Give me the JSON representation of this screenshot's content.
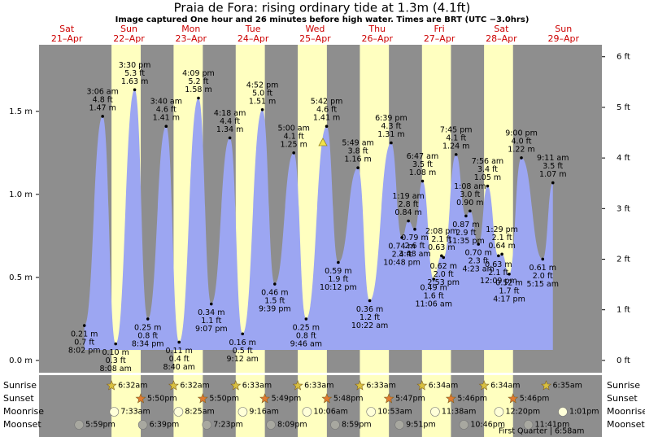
{
  "chart_data": {
    "type": "tide",
    "title": "Praia de Fora: rising  ordinary tide at 1.3m (4.1ft)",
    "subtitle": "Image captured One hour and 26 minutes before high water. Times are BRT (UTC −3.0hrs)",
    "ylim": [
      -0.074,
      1.901
    ],
    "yticks": [
      {
        "value": 0,
        "label": "0.0 m"
      },
      {
        "value": 0.5,
        "label": "0.5 m"
      },
      {
        "value": 1,
        "label": "1.0 m"
      },
      {
        "value": 1.5,
        "label": "1.5 m"
      }
    ],
    "y2lim": [
      -0.243,
      6.237
    ],
    "y2ticks": [
      {
        "value": 0,
        "label": "0 ft"
      },
      {
        "value": 1,
        "label": "1 ft"
      },
      {
        "value": 2,
        "label": "2 ft"
      },
      {
        "value": 3,
        "label": "3 ft"
      },
      {
        "value": 4,
        "label": "4 ft"
      },
      {
        "value": 5,
        "label": "5 ft"
      },
      {
        "value": 6,
        "label": "6 ft"
      }
    ],
    "row_labels": [
      "Sunrise",
      "Sunset",
      "Moonrise",
      "Moonset"
    ],
    "moon_phase": "First Quarter | 6:58am",
    "days": [
      {
        "weekday": "Sat",
        "date": "21–Apr",
        "moonset": "5:59pm",
        "tides": [
          {
            "time": "8:02 pm",
            "height": 0.21,
            "height_label": "0.21 m",
            "feet_label": "0.7 ft"
          }
        ]
      },
      {
        "weekday": "Sun",
        "date": "22–Apr",
        "sunrise": "6:32am",
        "sunset": "5:50pm",
        "moonrise": "7:33am",
        "moonset": "6:39pm",
        "tides": [
          {
            "time": "3:06 am",
            "height": 1.47,
            "height_label": "1.47 m",
            "feet_label": "4.8 ft"
          },
          {
            "time": "8:08 am",
            "height": 0.1,
            "height_label": "0.10 m",
            "feet_label": "0.3 ft"
          },
          {
            "time": "3:30 pm",
            "height": 1.63,
            "height_label": "1.63 m",
            "feet_label": "5.3 ft"
          },
          {
            "time": "8:34 pm",
            "height": 0.25,
            "height_label": "0.25 m",
            "feet_label": "0.8 ft"
          }
        ]
      },
      {
        "weekday": "Mon",
        "date": "23–Apr",
        "sunrise": "6:32am",
        "sunset": "5:50pm",
        "moonrise": "8:25am",
        "moonset": "7:23pm",
        "tides": [
          {
            "time": "3:40 am",
            "height": 1.41,
            "height_label": "1.41 m",
            "feet_label": "4.6 ft"
          },
          {
            "time": "8:40 am",
            "height": 0.11,
            "height_label": "0.11 m",
            "feet_label": "0.4 ft"
          },
          {
            "time": "4:09 pm",
            "height": 1.58,
            "height_label": "1.58 m",
            "feet_label": "5.2 ft"
          },
          {
            "time": "9:07 pm",
            "height": 0.34,
            "height_label": "0.34 m",
            "feet_label": "1.1 ft"
          }
        ]
      },
      {
        "weekday": "Tue",
        "date": "24–Apr",
        "sunrise": "6:33am",
        "sunset": "5:49pm",
        "moonrise": "9:16am",
        "moonset": "8:09pm",
        "tides": [
          {
            "time": "4:18 am",
            "height": 1.34,
            "height_label": "1.34 m",
            "feet_label": "4.4 ft"
          },
          {
            "time": "9:12 am",
            "height": 0.16,
            "height_label": "0.16 m",
            "feet_label": "0.5 ft"
          },
          {
            "time": "4:52 pm",
            "height": 1.51,
            "height_label": "1.51 m",
            "feet_label": "5.0 ft"
          },
          {
            "time": "9:39 pm",
            "height": 0.46,
            "height_label": "0.46 m",
            "feet_label": "1.5 ft"
          }
        ]
      },
      {
        "weekday": "Wed",
        "date": "25–Apr",
        "sunrise": "6:33am",
        "sunset": "5:48pm",
        "moonrise": "10:06am",
        "moonset": "8:59pm",
        "tides": [
          {
            "time": "5:00 am",
            "height": 1.25,
            "height_label": "1.25 m",
            "feet_label": "4.1 ft"
          },
          {
            "time": "9:46 am",
            "height": 0.25,
            "height_label": "0.25 m",
            "feet_label": "0.8 ft"
          },
          {
            "time": "5:42 pm",
            "height": 1.41,
            "height_label": "1.41 m",
            "feet_label": "4.6 ft"
          },
          {
            "time": "10:12 pm",
            "height": 0.59,
            "height_label": "0.59 m",
            "feet_label": "1.9 ft"
          }
        ]
      },
      {
        "weekday": "Thu",
        "date": "26–Apr",
        "sunrise": "6:33am",
        "sunset": "5:47pm",
        "moonrise": "10:53am",
        "moonset": "9:51pm",
        "tides": [
          {
            "time": "5:49 am",
            "height": 1.16,
            "height_label": "1.16 m",
            "feet_label": "3.8 ft"
          },
          {
            "time": "10:22 am",
            "height": 0.36,
            "height_label": "0.36 m",
            "feet_label": "1.2 ft"
          },
          {
            "time": "6:39 pm",
            "height": 1.31,
            "height_label": "1.31 m",
            "feet_label": "4.3 ft"
          },
          {
            "time": "10:48 pm",
            "height": 0.74,
            "height_label": "0.74 m",
            "feet_label": "2.4 ft"
          }
        ]
      },
      {
        "weekday": "Fri",
        "date": "27–Apr",
        "sunrise": "6:34am",
        "sunset": "5:46pm",
        "moonrise": "11:38am",
        "moonset": "10:46pm",
        "tides": [
          {
            "time": "1:19 am",
            "height": 0.84,
            "height_label": "0.84 m",
            "feet_label": "2.8 ft"
          },
          {
            "time": "3:48 am",
            "height": 0.79,
            "height_label": "0.79 m",
            "feet_label": "2.6 ft"
          },
          {
            "time": "6:47 am",
            "height": 1.08,
            "height_label": "1.08 m",
            "feet_label": "3.5 ft"
          },
          {
            "time": "11:06 am",
            "height": 0.49,
            "height_label": "0.49 m",
            "feet_label": "1.6 ft"
          },
          {
            "time": "2:08 pm",
            "height": 0.63,
            "height_label": "0.63 m",
            "feet_label": "2.1 ft"
          },
          {
            "time": "2:53 pm",
            "height": 0.62,
            "height_label": "0.62 m",
            "feet_label": "2.0 ft"
          },
          {
            "time": "7:45 pm",
            "height": 1.24,
            "height_label": "1.24 m",
            "feet_label": "4.1 ft"
          },
          {
            "time": "11:35 pm",
            "height": 0.87,
            "height_label": "0.87 m",
            "feet_label": "2.9 ft"
          }
        ]
      },
      {
        "weekday": "Sat",
        "date": "28–Apr",
        "sunrise": "6:34am",
        "sunset": "5:46pm",
        "moonrise": "12:20pm",
        "moonset": "11:41pm",
        "tides": [
          {
            "time": "1:08 am",
            "height": 0.9,
            "height_label": "0.90 m",
            "feet_label": "3.0 ft"
          },
          {
            "time": "4:23 am",
            "height": 0.7,
            "height_label": "0.70 m",
            "feet_label": "2.3 ft"
          },
          {
            "time": "7:56 am",
            "height": 1.05,
            "height_label": "1.05 m",
            "feet_label": "3.4 ft"
          },
          {
            "time": "12:09 pm",
            "height": 0.63,
            "height_label": "0.63 m",
            "feet_label": "2.1 ft"
          },
          {
            "time": "1:29 pm",
            "height": 0.64,
            "height_label": "0.64 m",
            "feet_label": "2.1 ft"
          },
          {
            "time": "4:17 pm",
            "height": 0.52,
            "height_label": "0.52 m",
            "feet_label": "1.7 ft"
          },
          {
            "time": "9:00 pm",
            "height": 1.22,
            "height_label": "1.22 m",
            "feet_label": "4.0 ft"
          }
        ]
      },
      {
        "weekday": "Sun",
        "date": "29–Apr",
        "sunrise": "6:35am",
        "moonrise": "1:01pm",
        "tides": [
          {
            "time": "5:15 am",
            "height": 0.61,
            "height_label": "0.61 m",
            "feet_label": "2.0 ft"
          },
          {
            "time": "9:11 am",
            "height": 1.07,
            "height_label": "1.07 m",
            "feet_label": "3.5 ft"
          }
        ]
      }
    ]
  }
}
